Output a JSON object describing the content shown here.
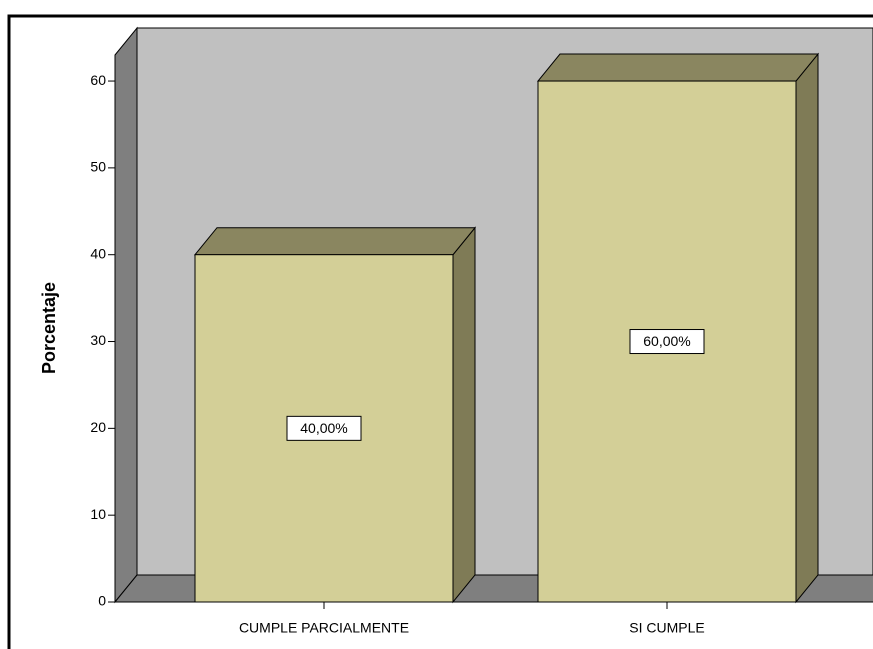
{
  "chart_data": {
    "type": "bar3d",
    "y_label": "Porcentaje",
    "categories": [
      "CUMPLE PARCIALMENTE",
      "SI CUMPLE"
    ],
    "values": [
      40,
      60
    ],
    "value_labels": [
      "40,00%",
      "60,00%"
    ],
    "color": "#d3cf97",
    "ylim": [
      0,
      63
    ],
    "yticks": [
      0,
      10,
      20,
      30,
      40,
      50,
      60
    ]
  }
}
